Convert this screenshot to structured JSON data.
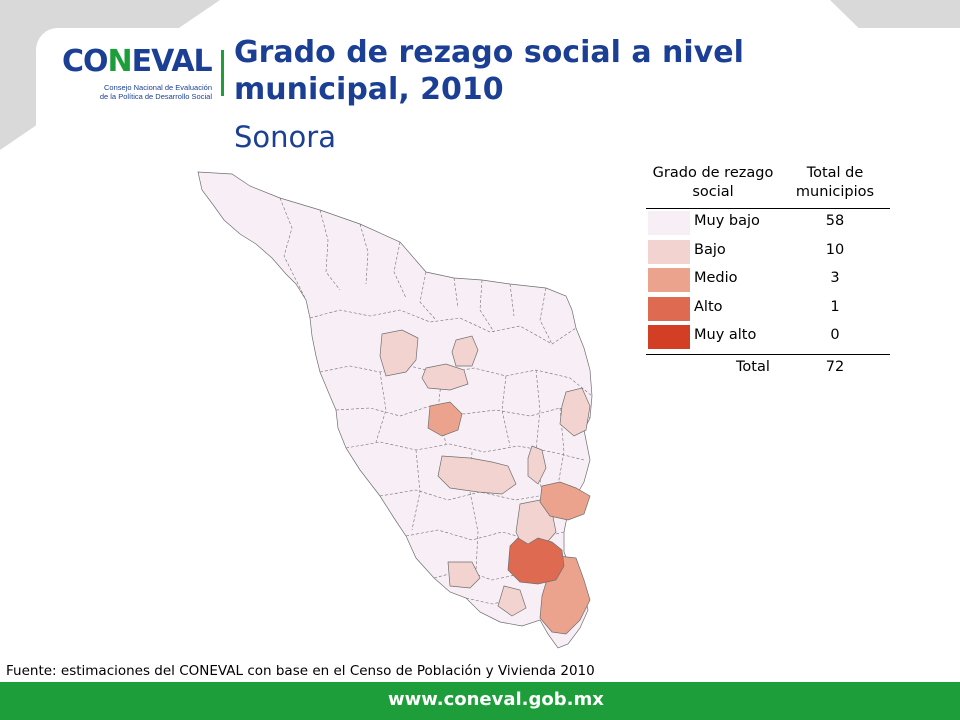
{
  "logo": {
    "wordmark_left": "CO",
    "wordmark_ell": "N",
    "wordmark_right": "EVAL",
    "subtitle_line1": "Consejo Nacional de Evaluación",
    "subtitle_line2": "de la Política de Desarrollo Social"
  },
  "title": "Grado de rezago social a nivel municipal, 2010",
  "subtitle": "Sonora",
  "legend": {
    "header_grade": "Grado de rezago social",
    "header_total": "Total de municipios",
    "rows": [
      {
        "label": "Muy bajo",
        "count": "58",
        "color": "#f8eff6"
      },
      {
        "label": "Bajo",
        "count": "10",
        "color": "#f3d3d0"
      },
      {
        "label": "Medio",
        "count": "3",
        "color": "#eba38e"
      },
      {
        "label": "Alto",
        "count": "1",
        "color": "#de6a52"
      },
      {
        "label": "Muy alto",
        "count": "0",
        "color": "#d33f24"
      }
    ],
    "total_label": "Total",
    "total_count": "72"
  },
  "source": "Fuente: estimaciones del CONEVAL con base en el Censo de Población y Vivienda 2010",
  "footer_url": "www.coneval.gob.mx",
  "colors": {
    "brand_blue": "#1b3f95",
    "brand_green": "#1e9e3a",
    "border": "#6f6f6f"
  }
}
